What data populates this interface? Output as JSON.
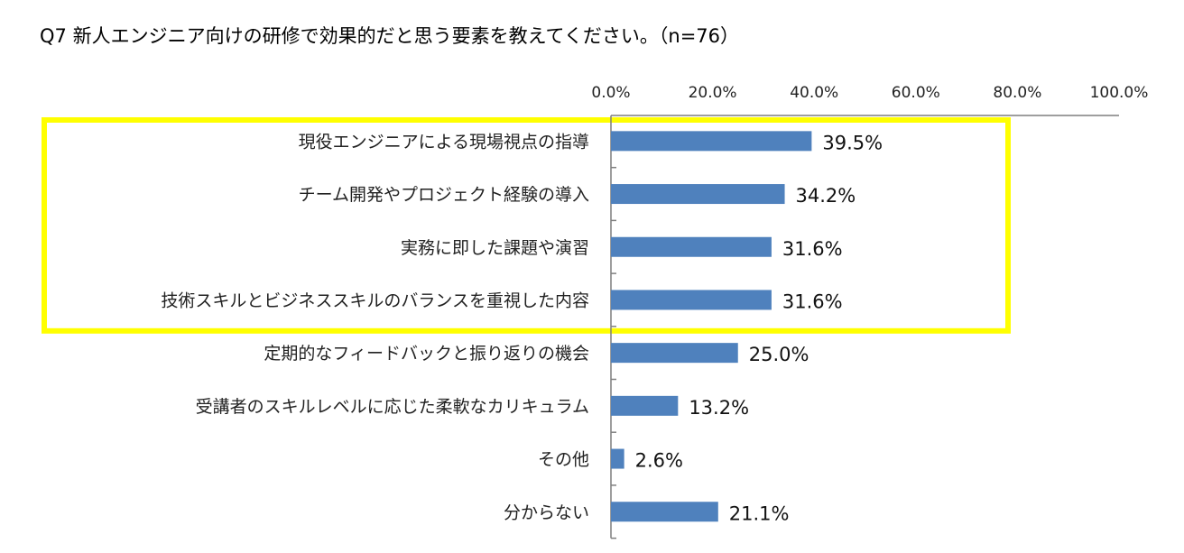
{
  "chart_data": {
    "type": "bar",
    "orientation": "horizontal",
    "title": "Q7 新人エンジニア向けの研修で効果的だと思う要素を教えてください。（n=76）",
    "categories": [
      "現役エンジニアによる現場視点の指導",
      "チーム開発やプロジェクト経験の導入",
      "実務に即した課題や演習",
      "技術スキルとビジネススキルのバランスを重視した内容",
      "定期的なフィードバックと振り返りの機会",
      "受講者のスキルレベルに応じた柔軟なカリキュラム",
      "その他",
      "分からない"
    ],
    "values": [
      39.5,
      34.2,
      31.6,
      31.6,
      25.0,
      13.2,
      2.6,
      21.1
    ],
    "data_labels": [
      "39.5%",
      "34.2%",
      "31.6%",
      "31.6%",
      "25.0%",
      "13.2%",
      "2.6%",
      "21.1%"
    ],
    "xlim": [
      0,
      100
    ],
    "x_ticks": [
      0,
      20,
      40,
      60,
      80,
      100
    ],
    "x_tick_labels": [
      "0.0%",
      "20.0%",
      "40.0%",
      "60.0%",
      "80.0%",
      "100.0%"
    ],
    "x_axis_position": "top",
    "grid": false,
    "highlight": {
      "categories": [
        0,
        1,
        2,
        3
      ],
      "color": "#ffff00"
    },
    "colors": {
      "bar": "#4f81bd",
      "axis": "#7f7f7f",
      "highlight": "#ffff00"
    }
  }
}
